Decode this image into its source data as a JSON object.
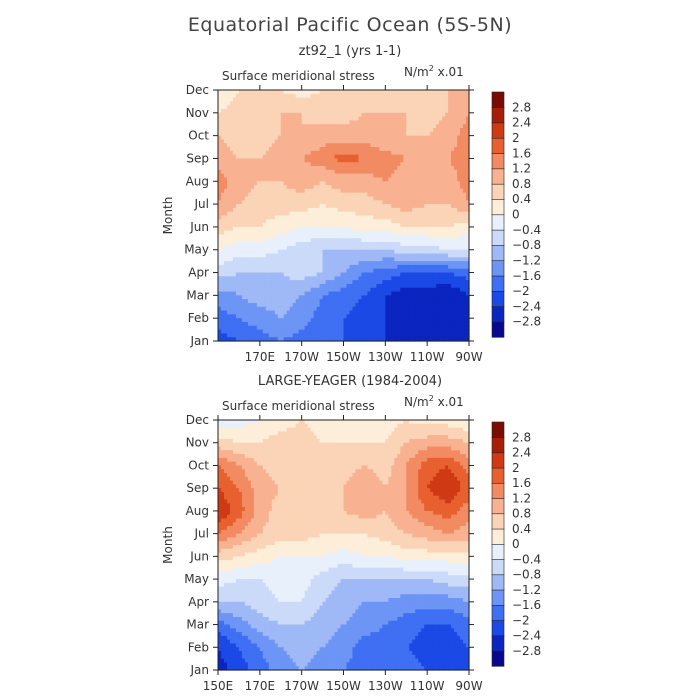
{
  "figure": {
    "title": "Equatorial Pacific Ocean (5S-5N)"
  },
  "panels_text": [
    {
      "subtitle": "zt92_1 (yrs 1-1)",
      "variable": "Surface meridional stress",
      "units_base": "N/m",
      "units_exp": "2",
      "units_scale": " x.01"
    },
    {
      "subtitle": "LARGE-YEAGER (1984-2004)",
      "variable": "Surface meridional stress",
      "units_base": "N/m",
      "units_exp": "2",
      "units_scale": " x.01"
    }
  ],
  "colorbar": {
    "colors": [
      "#08088f",
      "#0a25c0",
      "#1a49e6",
      "#3f6ff2",
      "#6c95f5",
      "#9fb9f7",
      "#cadaf8",
      "#e8f0fb",
      "#fdeed9",
      "#fbd4b7",
      "#f8b291",
      "#f28b62",
      "#e8602f",
      "#cf3a15",
      "#a81f08",
      "#7a0d02"
    ],
    "labels": [
      "2.8",
      "2.4",
      "2",
      "1.6",
      "1.2",
      "0.8",
      "0.4",
      "0",
      "-0.4",
      "-0.8",
      "-1.2",
      "-1.6",
      "-2",
      "-2.4",
      "-2.8"
    ]
  },
  "chart_data": [
    {
      "type": "heatmap",
      "title": "zt92_1 (yrs 1-1)",
      "subtitle": "Surface meridional stress",
      "units": "N/m2 x.01",
      "xlabel": "",
      "ylabel": "Month",
      "x_ticks": [
        "170E",
        "170W",
        "150W",
        "130W",
        "110W",
        "90W"
      ],
      "y_ticks": [
        "Jan",
        "Feb",
        "Mar",
        "Apr",
        "May",
        "Jun",
        "Jul",
        "Aug",
        "Sep",
        "Oct",
        "Nov",
        "Dec"
      ],
      "x_lon": [
        150,
        160,
        170,
        180,
        190,
        200,
        210,
        220,
        230,
        240,
        250,
        260,
        270
      ],
      "months": [
        "Jan",
        "Feb",
        "Mar",
        "Apr",
        "May",
        "Jun",
        "Jul",
        "Aug",
        "Sep",
        "Oct",
        "Nov",
        "Dec"
      ],
      "z": [
        [
          -2.2,
          -2.0,
          -1.8,
          -1.6,
          -1.8,
          -2.0,
          -2.0,
          -2.2,
          -2.4,
          -2.6,
          -2.6,
          -2.8,
          -2.6
        ],
        [
          -1.8,
          -1.6,
          -1.4,
          -1.2,
          -1.4,
          -1.8,
          -2.0,
          -2.2,
          -2.4,
          -2.6,
          -2.6,
          -2.8,
          -2.6
        ],
        [
          -1.4,
          -1.2,
          -1.0,
          -1.0,
          -1.2,
          -1.6,
          -1.8,
          -2.0,
          -2.4,
          -2.6,
          -2.6,
          -2.8,
          -2.4
        ],
        [
          -0.6,
          -0.8,
          -0.8,
          -0.8,
          -0.6,
          -0.8,
          -1.2,
          -1.6,
          -1.8,
          -2.0,
          -2.0,
          -2.0,
          -1.8
        ],
        [
          0.0,
          -0.2,
          -0.2,
          -0.4,
          -0.6,
          -0.8,
          -0.8,
          -0.8,
          -0.8,
          -0.6,
          -0.6,
          -0.4,
          -0.4
        ],
        [
          0.6,
          0.4,
          0.4,
          0.2,
          0.0,
          0.0,
          0.0,
          0.2,
          0.2,
          0.4,
          0.4,
          0.4,
          0.2
        ],
        [
          1.2,
          0.8,
          0.6,
          0.6,
          0.6,
          0.4,
          0.6,
          0.6,
          0.8,
          1.0,
          0.8,
          0.8,
          1.2
        ],
        [
          1.4,
          1.0,
          0.8,
          0.8,
          1.0,
          0.8,
          1.0,
          1.0,
          1.2,
          1.0,
          0.8,
          1.0,
          1.4
        ],
        [
          1.0,
          0.8,
          0.8,
          1.0,
          1.2,
          1.4,
          1.8,
          1.6,
          1.4,
          1.2,
          1.0,
          1.2,
          1.4
        ],
        [
          0.8,
          0.6,
          0.6,
          0.8,
          0.8,
          1.0,
          1.0,
          1.0,
          0.8,
          0.8,
          0.8,
          1.0,
          1.4
        ],
        [
          0.4,
          0.6,
          0.6,
          0.8,
          0.8,
          0.6,
          0.6,
          0.8,
          0.8,
          0.8,
          0.6,
          0.8,
          1.2
        ],
        [
          0.0,
          0.4,
          0.4,
          0.4,
          0.2,
          0.4,
          0.6,
          0.6,
          0.6,
          0.6,
          0.6,
          0.8,
          1.0
        ]
      ]
    },
    {
      "type": "heatmap",
      "title": "LARGE-YEAGER (1984-2004)",
      "subtitle": "Surface meridional stress",
      "units": "N/m2 x.01",
      "xlabel": "",
      "ylabel": "Month",
      "x_ticks": [
        "150E",
        "170E",
        "170W",
        "150W",
        "130W",
        "110W",
        "90W"
      ],
      "y_ticks": [
        "Jan",
        "Feb",
        "Mar",
        "Apr",
        "May",
        "Jun",
        "Jul",
        "Aug",
        "Sep",
        "Oct",
        "Nov",
        "Dec"
      ],
      "x_lon": [
        150,
        160,
        170,
        180,
        190,
        200,
        210,
        220,
        230,
        240,
        250,
        260,
        270
      ],
      "months": [
        "Jan",
        "Feb",
        "Mar",
        "Apr",
        "May",
        "Jun",
        "Jul",
        "Aug",
        "Sep",
        "Oct",
        "Nov",
        "Dec"
      ],
      "z": [
        [
          -2.6,
          -2.2,
          -1.8,
          -1.4,
          -1.2,
          -1.4,
          -1.6,
          -1.8,
          -1.6,
          -1.8,
          -2.0,
          -2.2,
          -2.2
        ],
        [
          -2.4,
          -2.0,
          -1.6,
          -1.2,
          -1.0,
          -1.2,
          -1.4,
          -1.8,
          -1.8,
          -2.0,
          -2.2,
          -2.2,
          -2.0
        ],
        [
          -1.8,
          -1.4,
          -1.0,
          -0.8,
          -0.8,
          -1.0,
          -1.2,
          -1.4,
          -1.6,
          -1.8,
          -2.0,
          -2.0,
          -1.8
        ],
        [
          -0.8,
          -0.8,
          -0.6,
          -0.4,
          -0.4,
          -0.8,
          -1.0,
          -1.2,
          -1.2,
          -1.4,
          -1.4,
          -1.4,
          -1.2
        ],
        [
          -0.2,
          -0.4,
          -0.4,
          -0.2,
          -0.2,
          -0.6,
          -0.8,
          -0.8,
          -0.8,
          -0.8,
          -0.8,
          -0.6,
          -0.6
        ],
        [
          0.6,
          0.4,
          0.2,
          0.0,
          0.0,
          0.0,
          -0.2,
          0.0,
          0.0,
          0.2,
          0.2,
          0.2,
          0.2
        ],
        [
          1.6,
          1.2,
          0.8,
          0.6,
          0.6,
          0.4,
          0.4,
          0.4,
          0.6,
          0.8,
          1.0,
          1.2,
          1.0
        ],
        [
          2.4,
          1.8,
          1.0,
          0.6,
          0.8,
          0.6,
          0.8,
          1.0,
          0.8,
          1.2,
          1.6,
          1.8,
          1.4
        ],
        [
          2.0,
          1.6,
          1.0,
          0.8,
          0.6,
          0.6,
          0.8,
          1.2,
          0.8,
          1.2,
          2.0,
          2.4,
          1.8
        ],
        [
          1.6,
          1.2,
          0.8,
          0.6,
          0.6,
          0.8,
          0.6,
          0.8,
          0.6,
          1.2,
          1.8,
          2.0,
          1.4
        ],
        [
          0.6,
          0.4,
          0.4,
          0.6,
          0.6,
          0.4,
          0.4,
          0.4,
          0.4,
          0.8,
          1.0,
          1.0,
          0.8
        ],
        [
          -0.4,
          -0.2,
          0.0,
          0.2,
          0.4,
          0.2,
          0.2,
          0.2,
          0.2,
          0.4,
          0.2,
          0.2,
          0.0
        ]
      ]
    }
  ]
}
